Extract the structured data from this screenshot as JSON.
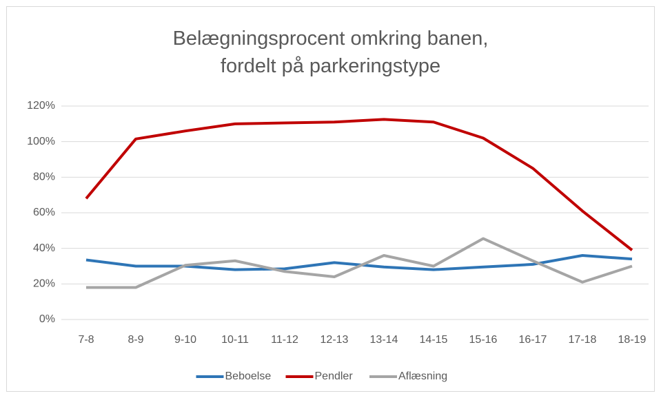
{
  "chart_data": {
    "type": "line",
    "title": "Belægningsprocent omkring banen,\nfordelt på parkeringstype",
    "categories": [
      "7-8",
      "8-9",
      "9-10",
      "10-11",
      "11-12",
      "12-13",
      "13-14",
      "14-15",
      "15-16",
      "16-17",
      "17-18",
      "18-19"
    ],
    "series": [
      {
        "name": "Beboelse",
        "color": "#2e75b6",
        "values": [
          33.5,
          30,
          30,
          28,
          28.5,
          32,
          29.5,
          28,
          29.5,
          31,
          36,
          34
        ]
      },
      {
        "name": "Pendler",
        "color": "#c00000",
        "values": [
          68,
          101.5,
          106,
          110,
          110.5,
          111,
          112.5,
          111,
          102,
          85,
          61,
          39
        ]
      },
      {
        "name": "Aflæsning",
        "color": "#a5a5a5",
        "values": [
          18,
          18,
          30.5,
          33,
          27,
          24,
          36,
          30,
          45.5,
          33,
          21,
          30
        ]
      }
    ],
    "ylim": [
      0,
      120
    ],
    "yticks": [
      {
        "value": 0,
        "label": "0%"
      },
      {
        "value": 20,
        "label": "20%"
      },
      {
        "value": 40,
        "label": "40%"
      },
      {
        "value": 60,
        "label": "60%"
      },
      {
        "value": 80,
        "label": "80%"
      },
      {
        "value": 100,
        "label": "100%"
      },
      {
        "value": 120,
        "label": "120%"
      }
    ],
    "grid": true,
    "legend": "bottom"
  }
}
